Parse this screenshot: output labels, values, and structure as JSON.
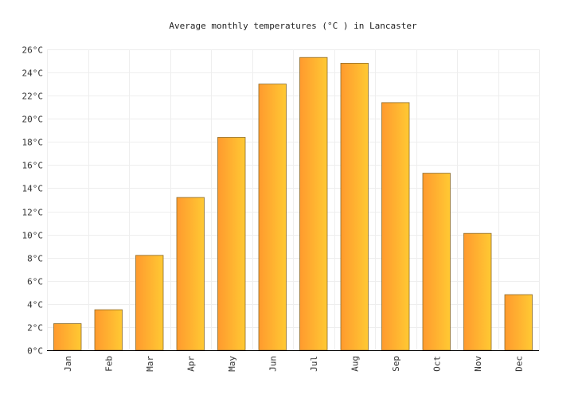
{
  "chart_data": {
    "type": "bar",
    "title": "Average monthly temperatures (°C ) in Lancaster",
    "xlabel": "",
    "ylabel": "",
    "categories": [
      "Jan",
      "Feb",
      "Mar",
      "Apr",
      "May",
      "Jun",
      "Jul",
      "Aug",
      "Sep",
      "Oct",
      "Nov",
      "Dec"
    ],
    "values": [
      2.3,
      3.5,
      8.2,
      13.2,
      18.4,
      23.0,
      25.3,
      24.8,
      21.4,
      15.3,
      10.1,
      4.8
    ],
    "ylim": [
      0,
      26
    ],
    "yticks": [
      0,
      2,
      4,
      6,
      8,
      10,
      12,
      14,
      16,
      18,
      20,
      22,
      24,
      26
    ],
    "ytick_labels": [
      "0°C",
      "2°C",
      "4°C",
      "6°C",
      "8°C",
      "10°C",
      "12°C",
      "14°C",
      "16°C",
      "18°C",
      "20°C",
      "22°C",
      "24°C",
      "26°C"
    ],
    "grid": true,
    "legend": "none",
    "colors": {
      "bar_start": "#ff9a2e",
      "bar_end": "#ffc933",
      "bar_stroke": "#8a6a2a",
      "grid": "#eeeeee"
    }
  }
}
